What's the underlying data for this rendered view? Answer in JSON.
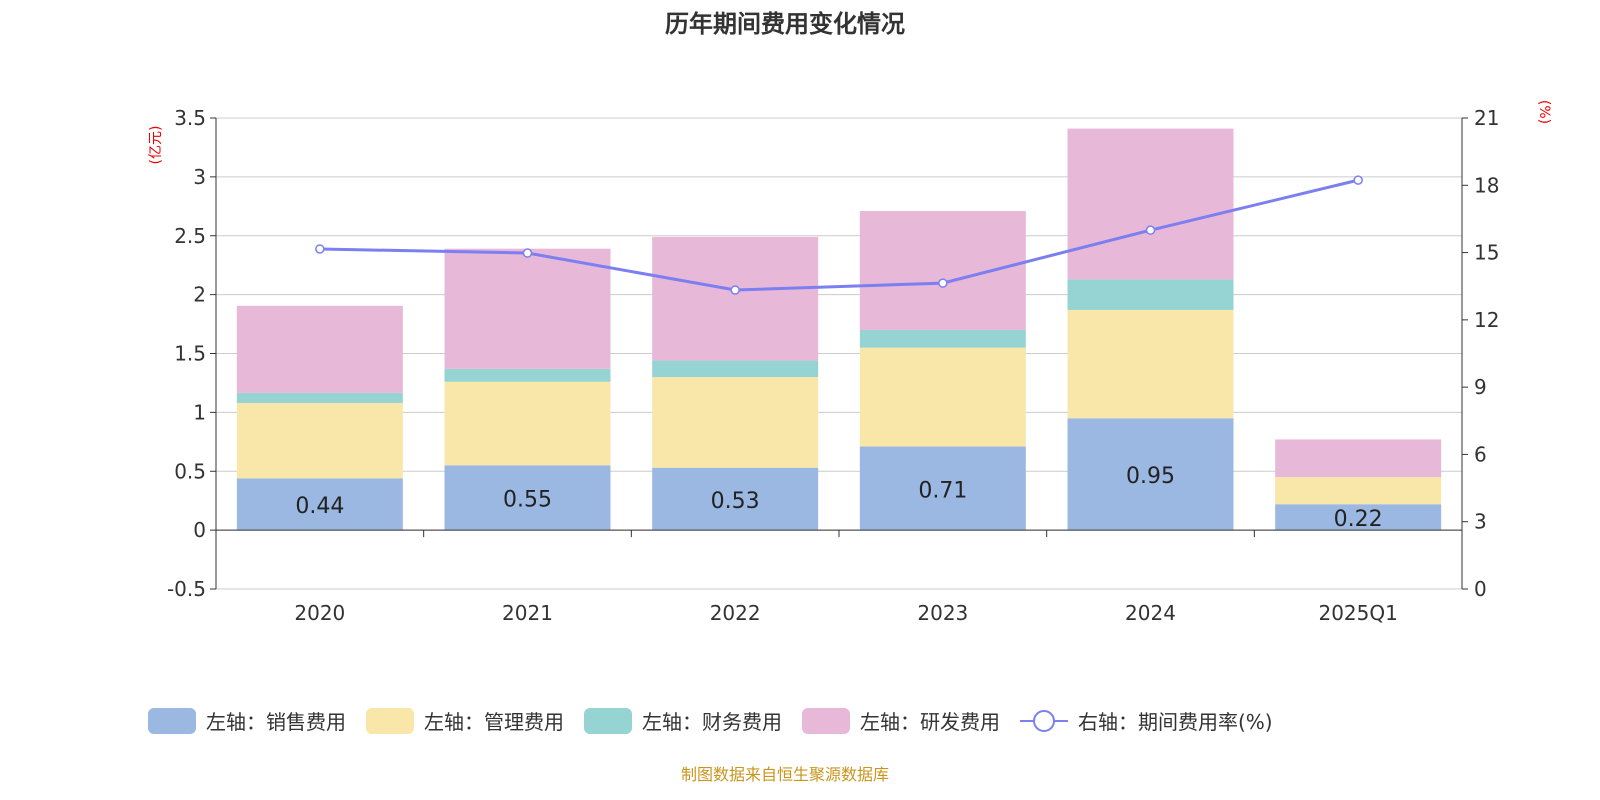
{
  "chart_data": {
    "type": "bar",
    "title": "历年期间费用变化情况",
    "left_unit": "(亿元)",
    "right_unit": "(%)",
    "categories": [
      "2020",
      "2021",
      "2022",
      "2023",
      "2024",
      "2025Q1"
    ],
    "left_ticks": [
      "3.5",
      "3",
      "2.5",
      "2",
      "1.5",
      "1",
      "0.5",
      "0",
      "-0.5"
    ],
    "right_ticks": [
      "21",
      "18",
      "15",
      "12",
      "9",
      "6",
      "3",
      "0"
    ],
    "ylim_left": [
      -0.5,
      3.5
    ],
    "ylim_right": [
      0,
      21
    ],
    "series": [
      {
        "name": "左轴：销售费用",
        "color": "#9bb8e2",
        "values": [
          0.44,
          0.55,
          0.53,
          0.71,
          0.95,
          0.22
        ],
        "labels": [
          "0.44",
          "0.55",
          "0.53",
          "0.71",
          "0.95",
          "0.22"
        ]
      },
      {
        "name": "左轴：管理费用",
        "color": "#f8e7a8",
        "values": [
          0.64,
          0.71,
          0.77,
          0.84,
          0.92,
          0.23
        ]
      },
      {
        "name": "左轴：财务费用",
        "color": "#96d3d3",
        "values": [
          0.085,
          0.11,
          0.14,
          0.15,
          0.26,
          0.0
        ]
      },
      {
        "name": "左轴：研发费用",
        "color": "#e7b8d8",
        "values": [
          0.74,
          1.02,
          1.05,
          1.01,
          1.28,
          0.32
        ]
      }
    ],
    "line": {
      "name": "右轴：期间费用率(%)",
      "color": "#7b7ff0",
      "values": [
        15.16,
        14.98,
        13.33,
        13.64,
        16.0,
        18.23
      ]
    },
    "source": "制图数据来自恒生聚源数据库"
  }
}
